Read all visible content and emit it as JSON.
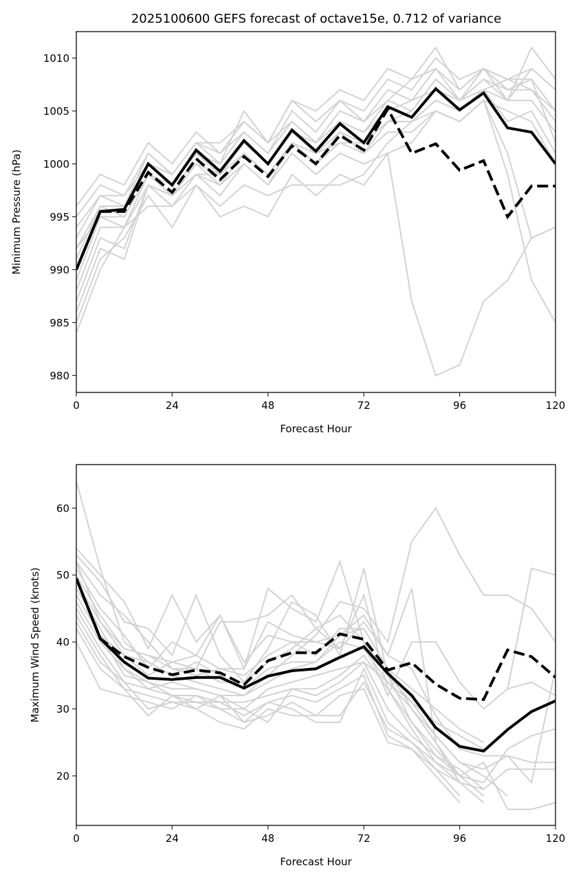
{
  "figure_title": "2025100600 GEFS forecast of octave15e, 0.712 of variance",
  "colors": {
    "members": "#d3d3d3",
    "main": "#000000",
    "axes": "#262626"
  },
  "chart_data": [
    {
      "type": "line",
      "title": "2025100600 GEFS forecast of octave15e, 0.712 of variance",
      "xlabel": "Forecast Hour",
      "ylabel": "Minimum Pressure (hPa)",
      "xlim": [
        0,
        120
      ],
      "ylim": [
        978.4,
        1012.5
      ],
      "xticks": [
        "0",
        "24",
        "48",
        "72",
        "96",
        "120"
      ],
      "xtick_values": [
        0,
        24,
        48,
        72,
        96,
        120
      ],
      "yticks": [
        "980",
        "985",
        "990",
        "995",
        "1000",
        "1005",
        "1010"
      ],
      "ytick_values": [
        980,
        985,
        990,
        995,
        1000,
        1005,
        1010
      ],
      "grid": false,
      "x": [
        0,
        6,
        12,
        18,
        24,
        30,
        36,
        42,
        48,
        54,
        60,
        66,
        72,
        78,
        84,
        90,
        96,
        102,
        108,
        114,
        120
      ],
      "series": [
        {
          "name": "solid",
          "style": "solid",
          "values": [
            990,
            995.5,
            995.7,
            1000,
            998,
            1001.3,
            999.3,
            1002.2,
            1000,
            1003.2,
            1001.2,
            1003.8,
            1002,
            1005.4,
            1004.4,
            1007.1,
            1005.1,
            1006.7,
            1003.4,
            1003,
            1000
          ]
        },
        {
          "name": "dashed",
          "style": "dashed",
          "values": [
            990,
            995.5,
            995.5,
            999.2,
            997.3,
            1000.5,
            998.5,
            1000.7,
            998.8,
            1001.7,
            1000,
            1002.7,
            1001.3,
            1005.2,
            1001,
            1001.9,
            999.4,
            1000.3,
            995,
            997.9,
            997.9
          ]
        }
      ],
      "members": [
        [
          996,
          999,
          998,
          1002,
          1000,
          1003,
          1001,
          1004,
          1002,
          1006,
          1005,
          1007,
          1006,
          1009,
          1008,
          1011,
          1007,
          1009,
          1006,
          1011,
          1008
        ],
        [
          995,
          998,
          997,
          1001,
          999,
          1002,
          1000,
          1005,
          1002,
          1006,
          1004,
          1006,
          1005,
          1008,
          1007,
          1010,
          1008,
          1009,
          1008,
          1009,
          1007
        ],
        [
          994,
          997,
          996,
          1001,
          999,
          1002,
          1001,
          1003,
          1001,
          1005,
          1003,
          1006,
          1004,
          1007,
          1006,
          1009,
          1006,
          1008,
          1007,
          1008,
          1005
        ],
        [
          993,
          997,
          997,
          1000,
          999,
          1002,
          1002,
          1004,
          1002,
          1004,
          1002,
          1005,
          1004,
          1006,
          1008,
          1009,
          1007,
          1009,
          1008,
          1008,
          1002
        ],
        [
          992,
          996,
          995,
          999,
          998,
          1001,
          1000,
          1003,
          1001,
          1004,
          1002,
          1004,
          1003,
          1006,
          1005,
          1008,
          1006,
          1008,
          1006,
          1009,
          1007
        ],
        [
          991,
          996,
          996,
          1000,
          998,
          1001,
          999,
          1002,
          1000,
          1003,
          1002,
          1004,
          1003,
          1005,
          1006,
          1007,
          1006,
          1009,
          1007,
          1007,
          1004
        ],
        [
          989,
          995,
          995,
          999,
          998,
          1000,
          999,
          1002,
          1000,
          1003,
          1001,
          1003,
          1002,
          1004,
          1004,
          1006,
          1005,
          1007,
          1004,
          1005,
          1001
        ],
        [
          988,
          994,
          994,
          999,
          997,
          1000,
          998,
          1001,
          999,
          1002,
          1001,
          1002,
          1002,
          1004,
          1004,
          1005,
          1004,
          1006,
          999,
          989,
          985
        ],
        [
          987,
          993,
          992,
          998,
          997,
          999,
          998,
          1000,
          998,
          1002,
          1000,
          1002,
          1001,
          1003,
          1003,
          1005,
          1004,
          1006,
          1001,
          993,
          994
        ],
        [
          986,
          992,
          991,
          998,
          996,
          999,
          997,
          1000,
          998,
          1001,
          999,
          1001,
          1000,
          1001,
          987,
          980,
          981,
          987,
          989,
          993,
          994
        ],
        [
          985,
          991,
          993,
          997,
          994,
          998,
          995,
          996,
          995,
          999,
          997,
          999,
          998,
          1001,
          1002,
          1005,
          1004,
          1006,
          1005,
          1004,
          1000
        ],
        [
          984,
          990,
          994,
          996,
          996,
          998,
          996,
          998,
          997,
          998,
          998,
          998,
          999,
          1002,
          1004,
          1006,
          1005,
          1007,
          1006,
          1006,
          1003
        ],
        [
          992,
          995,
          994,
          998,
          997,
          999,
          999,
          1001,
          999,
          1002,
          1000,
          1003,
          1001,
          1004,
          1005,
          1008,
          1006,
          1007,
          1008,
          1007,
          1005
        ]
      ]
    },
    {
      "type": "line",
      "title": "",
      "xlabel": "Forecast Hour",
      "ylabel": "Maximum Wind Speed (knots)",
      "xlim": [
        0,
        120
      ],
      "ylim": [
        12.6,
        66.5
      ],
      "xticks": [
        "0",
        "24",
        "48",
        "72",
        "96",
        "120"
      ],
      "xtick_values": [
        0,
        24,
        48,
        72,
        96,
        120
      ],
      "yticks": [
        "20",
        "30",
        "40",
        "50",
        "60"
      ],
      "ytick_values": [
        20,
        30,
        40,
        50,
        60
      ],
      "grid": false,
      "x": [
        0,
        6,
        12,
        18,
        24,
        30,
        36,
        42,
        48,
        54,
        60,
        66,
        72,
        78,
        84,
        90,
        96,
        102,
        108,
        114,
        120
      ],
      "series": [
        {
          "name": "solid",
          "style": "solid",
          "values": [
            49.5,
            40.5,
            37,
            34.6,
            34.4,
            34.7,
            34.7,
            33.1,
            34.9,
            35.7,
            36,
            37.7,
            39.3,
            35.3,
            32,
            27.2,
            24.4,
            23.7,
            26.9,
            29.6,
            31.2
          ]
        },
        {
          "name": "dashed",
          "style": "dashed",
          "values": [
            49.5,
            40.5,
            37.8,
            36.2,
            35.1,
            35.8,
            35.4,
            33.6,
            37.2,
            38.4,
            38.4,
            41.2,
            40.4,
            35.8,
            36.9,
            33.7,
            31.6,
            31.4,
            38.8,
            37.8,
            34.7
          ]
        },
        {
          "name": "note",
          "style": "none",
          "values": []
        }
      ],
      "members": [
        [
          64,
          51,
          40,
          37,
          35,
          34,
          33,
          32,
          35,
          38,
          41,
          46,
          45,
          40,
          55,
          60,
          53,
          47,
          47,
          45,
          40
        ],
        [
          54,
          50,
          46,
          39,
          47,
          40,
          44,
          36,
          48,
          45,
          43,
          52,
          40,
          35,
          31,
          26,
          22,
          20,
          17,
          null,
          null
        ],
        [
          53,
          49,
          43,
          42,
          38,
          47,
          38,
          34,
          39,
          46,
          44,
          38,
          51,
          35,
          28,
          24,
          20,
          17,
          null,
          null,
          null
        ],
        [
          52,
          47,
          44,
          40,
          36,
          36,
          43,
          43,
          44,
          47,
          42,
          44,
          40,
          32,
          40,
          40,
          34,
          30,
          33,
          51,
          50
        ],
        [
          51,
          45,
          41,
          36,
          40,
          38,
          44,
          37,
          41,
          40,
          40,
          41,
          44,
          38,
          36,
          29,
          24,
          23,
          23,
          22,
          22
        ],
        [
          50,
          44,
          39,
          38,
          36,
          35,
          36,
          36,
          43,
          41,
          40,
          39,
          47,
          33,
          28,
          23,
          20,
          22,
          15,
          15,
          16
        ],
        [
          49,
          43,
          38,
          35,
          37,
          36,
          34,
          34,
          37,
          39,
          42,
          39,
          43,
          38,
          48,
          25,
          19,
          18,
          21,
          21,
          21
        ],
        [
          48,
          42,
          36,
          33,
          34,
          33,
          32,
          32,
          34,
          36,
          37,
          41,
          42,
          36,
          30,
          26,
          22,
          21,
          23,
          19,
          36
        ],
        [
          47,
          41,
          35,
          34,
          33,
          33,
          32,
          30,
          33,
          34,
          35,
          36,
          37,
          34,
          30,
          25,
          20,
          19,
          24,
          26,
          27
        ],
        [
          46,
          40,
          36,
          34,
          32,
          32,
          31,
          31,
          32,
          33,
          33,
          35,
          38,
          33,
          27,
          22,
          19,
          null,
          33,
          34,
          32
        ],
        [
          45,
          39,
          34,
          33,
          32,
          31,
          30,
          28,
          31,
          30,
          28,
          28,
          36,
          28,
          25,
          21,
          19,
          16,
          null,
          null,
          null
        ],
        [
          44,
          38,
          33,
          32,
          31,
          31,
          31,
          29,
          31,
          32,
          31,
          33,
          35,
          26,
          24,
          21,
          17,
          null,
          null,
          null,
          null
        ],
        [
          43,
          37,
          34,
          30,
          31,
          30,
          32,
          28,
          29,
          31,
          29,
          29,
          34,
          27,
          25,
          22,
          20,
          null,
          null,
          null,
          null
        ],
        [
          42,
          36,
          33,
          29,
          32,
          30,
          28,
          27,
          30,
          29,
          29,
          32,
          33,
          25,
          24,
          20,
          16,
          null,
          null,
          null,
          null
        ],
        [
          40,
          33,
          32,
          31,
          30,
          32,
          30,
          30,
          28,
          33,
          32,
          34,
          37,
          30,
          26,
          23,
          21,
          18,
          null,
          null,
          null
        ],
        [
          50,
          41,
          38,
          37,
          35,
          37,
          35,
          33,
          36,
          37,
          37,
          40,
          39,
          34,
          31,
          28,
          26,
          24,
          null,
          null,
          null
        ],
        [
          52,
          43,
          39,
          38,
          37,
          38,
          36,
          35,
          38,
          40,
          38,
          42,
          42,
          36,
          33,
          30,
          27,
          25,
          null,
          null,
          null
        ]
      ]
    }
  ]
}
